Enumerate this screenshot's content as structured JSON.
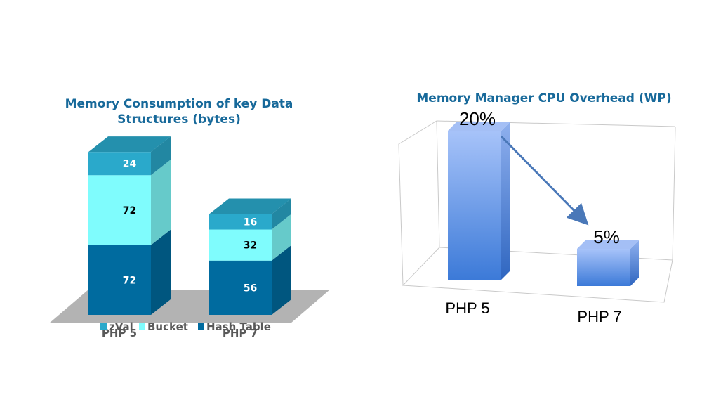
{
  "charts": [
    {
      "title": "Memory Consumption of key Data Structures (bytes)",
      "chart_data": {
        "type": "bar",
        "stacked": true,
        "style": "3d",
        "categories": [
          "PHP 5",
          "PHP 7"
        ],
        "series": [
          {
            "name": "Hash Table",
            "values": [
              72,
              56
            ],
            "color": "#006b9f",
            "label_color": "#ffffff"
          },
          {
            "name": "Bucket",
            "values": [
              72,
              32
            ],
            "color": "#7ffcfd",
            "label_color": "#000000"
          },
          {
            "name": "zVal",
            "values": [
              24,
              16
            ],
            "color": "#2aa9cb",
            "label_color": "#ffffff"
          }
        ],
        "legend": [
          "zVal",
          "Bucket",
          "Hash Table"
        ],
        "legend_position": "bottom",
        "floor_color": "#b3b3b3"
      }
    },
    {
      "title": "Memory Manager CPU Overhead (WP)",
      "chart_data": {
        "type": "bar",
        "style": "3d",
        "categories": [
          "PHP 5",
          "PHP 7"
        ],
        "values": [
          20,
          5
        ],
        "value_labels": [
          "20%",
          "5%"
        ],
        "bar_color": "#5b8fe0",
        "annotation": "arrow from PHP 5 bar to PHP 7 bar"
      }
    }
  ]
}
